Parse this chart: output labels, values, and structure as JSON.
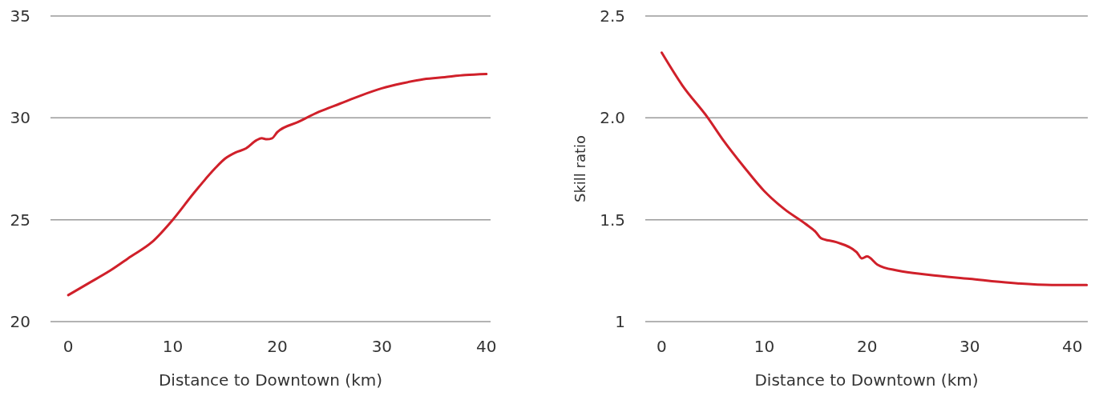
{
  "chart_data": [
    {
      "type": "line",
      "xlabel": "Distance to Downtown (km)",
      "x": [
        0,
        2,
        4,
        6,
        8,
        10,
        12,
        14,
        15,
        16,
        17,
        18,
        18.5,
        19,
        19.5,
        20,
        22,
        24,
        26,
        28,
        30,
        32,
        34,
        36,
        38,
        40
      ],
      "series": [
        {
          "color": "#d0202a",
          "values": [
            21.3,
            21.9,
            22.5,
            23.2,
            23.9,
            25.0,
            26.3,
            27.5,
            28.0,
            28.3,
            28.5,
            28.9,
            29.0,
            28.95,
            29.0,
            29.3,
            29.8,
            30.3,
            30.7,
            31.1,
            31.45,
            31.7,
            31.9,
            32.0,
            32.1,
            32.15
          ]
        }
      ],
      "xlim": [
        -1.7,
        40.4
      ],
      "xticks": [
        0,
        10,
        20,
        30,
        40
      ],
      "ylim": [
        20,
        35
      ],
      "yticks": [
        20,
        25,
        30,
        35
      ],
      "grid": "y"
    },
    {
      "type": "line",
      "xlabel": "Distance to Downtown (km)",
      "ylabel": "Skill ratio",
      "x": [
        0,
        2,
        4.5,
        6,
        8,
        10,
        12,
        14,
        15,
        15.5,
        17,
        19,
        19.5,
        20,
        21,
        23,
        26,
        30,
        34,
        38,
        40,
        41.4
      ],
      "series": [
        {
          "color": "#d0202a",
          "values": [
            2.32,
            2.16,
            2.0,
            1.89,
            1.76,
            1.64,
            1.55,
            1.48,
            1.44,
            1.41,
            1.39,
            1.34,
            1.31,
            1.32,
            1.28,
            1.25,
            1.23,
            1.21,
            1.19,
            1.18,
            1.18,
            1.18
          ]
        }
      ],
      "xlim": [
        -1.6,
        41.5
      ],
      "xticks": [
        0,
        10,
        20,
        30,
        40
      ],
      "ylim": [
        1,
        2.5
      ],
      "yticks": [
        1,
        1.5,
        {
          "value": 2,
          "label": "2.0"
        },
        2.5
      ],
      "grid": "y"
    }
  ]
}
